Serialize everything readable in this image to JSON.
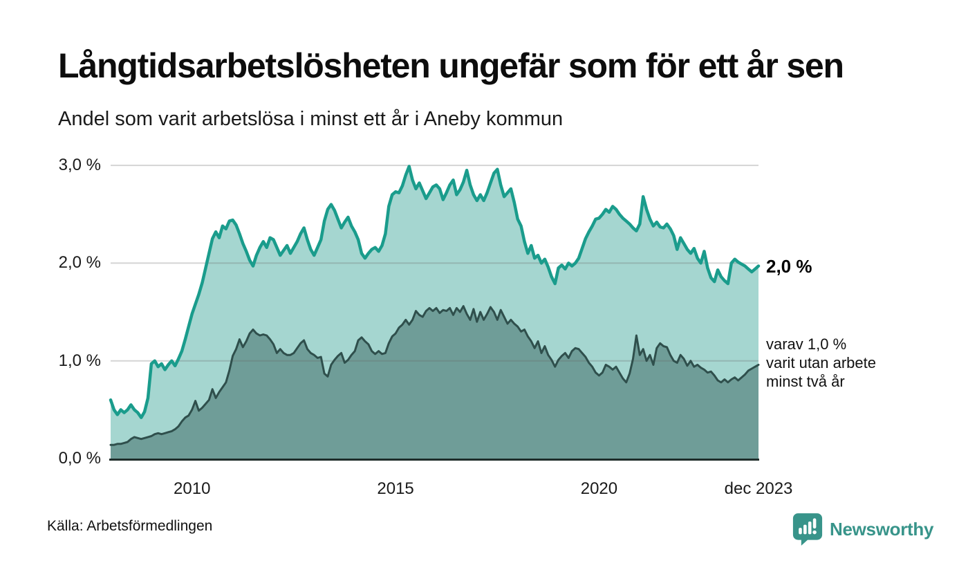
{
  "header": {
    "title": "Långtidsarbetslösheten ungefär som för ett år sen",
    "subtitle": "Andel som varit arbetslösa i minst ett år i Aneby kommun"
  },
  "annotations": {
    "end_value": "2,0 %",
    "note_lines": [
      "varav 1,0 %",
      "varit utan arbete",
      "minst två år"
    ]
  },
  "footer": {
    "source": "Källa: Arbetsförmedlingen",
    "brand": "Newsworthy"
  },
  "colors": {
    "series1_line": "#1a9c8c",
    "series1_fill": "#a5d6d0",
    "series2_line": "#2f4f4c",
    "series2_fill": "#6f9d98",
    "gridline": "rgba(100,100,100,0.28)",
    "baseline": "#1f2d2b",
    "brand_teal": "#38948a"
  },
  "chart_data": {
    "type": "area",
    "title": "Långtidsarbetslösheten ungefär som för ett år sen",
    "subtitle": "Andel som varit arbetslösa i minst ett år i Aneby kommun",
    "unit": "%",
    "frequency": "monthly",
    "x_start": "2008-01",
    "x_end": "2023-12",
    "ylim": [
      0,
      3.0
    ],
    "grid": true,
    "y_ticks": [
      {
        "label": "0,0 %",
        "value": 0
      },
      {
        "label": "1,0 %",
        "value": 1
      },
      {
        "label": "2,0 %",
        "value": 2
      },
      {
        "label": "3,0 %",
        "value": 3
      }
    ],
    "x_ticks": [
      {
        "label": "2010",
        "t": 2010
      },
      {
        "label": "2015",
        "t": 2015
      },
      {
        "label": "2020",
        "t": 2020
      },
      {
        "label": "dec 2023",
        "t": 2023.917
      }
    ],
    "series": [
      {
        "name": "Andel arbetslösa minst ett år",
        "end_label": "2,0 %",
        "line_color": "#1a9c8c",
        "fill_color": "#a5d6d0",
        "values": [
          0.6,
          0.5,
          0.45,
          0.5,
          0.47,
          0.5,
          0.55,
          0.5,
          0.47,
          0.42,
          0.48,
          0.62,
          0.97,
          1.0,
          0.94,
          0.97,
          0.91,
          0.96,
          1.0,
          0.95,
          1.02,
          1.1,
          1.22,
          1.35,
          1.48,
          1.58,
          1.68,
          1.8,
          1.95,
          2.1,
          2.25,
          2.32,
          2.26,
          2.38,
          2.35,
          2.43,
          2.44,
          2.39,
          2.3,
          2.2,
          2.12,
          2.03,
          1.97,
          2.08,
          2.16,
          2.22,
          2.16,
          2.26,
          2.24,
          2.16,
          2.08,
          2.13,
          2.18,
          2.1,
          2.16,
          2.22,
          2.3,
          2.36,
          2.24,
          2.14,
          2.08,
          2.16,
          2.24,
          2.43,
          2.55,
          2.6,
          2.54,
          2.45,
          2.36,
          2.42,
          2.47,
          2.38,
          2.32,
          2.24,
          2.1,
          2.05,
          2.1,
          2.14,
          2.16,
          2.12,
          2.18,
          2.3,
          2.58,
          2.7,
          2.73,
          2.72,
          2.79,
          2.9,
          2.99,
          2.85,
          2.76,
          2.82,
          2.74,
          2.66,
          2.72,
          2.78,
          2.8,
          2.76,
          2.65,
          2.72,
          2.8,
          2.85,
          2.7,
          2.75,
          2.83,
          2.95,
          2.8,
          2.7,
          2.64,
          2.7,
          2.64,
          2.72,
          2.82,
          2.92,
          2.96,
          2.8,
          2.68,
          2.72,
          2.76,
          2.62,
          2.45,
          2.38,
          2.22,
          2.1,
          2.18,
          2.05,
          2.08,
          2.0,
          2.04,
          1.96,
          1.86,
          1.79,
          1.95,
          1.98,
          1.94,
          2.0,
          1.97,
          2.0,
          2.05,
          2.15,
          2.25,
          2.32,
          2.38,
          2.45,
          2.46,
          2.5,
          2.55,
          2.52,
          2.58,
          2.55,
          2.5,
          2.46,
          2.43,
          2.4,
          2.36,
          2.33,
          2.4,
          2.68,
          2.55,
          2.45,
          2.38,
          2.42,
          2.37,
          2.36,
          2.4,
          2.35,
          2.28,
          2.14,
          2.26,
          2.2,
          2.14,
          2.1,
          2.15,
          2.05,
          2.0,
          2.12,
          1.95,
          1.85,
          1.81,
          1.93,
          1.86,
          1.82,
          1.79,
          2.0,
          2.04,
          2.01,
          1.99,
          1.97,
          1.94,
          1.91,
          1.94,
          1.97
        ]
      },
      {
        "name": "varav utan arbete minst två år",
        "end_label": "varav 1,0 % varit utan arbete minst två år",
        "line_color": "#2f4f4c",
        "fill_color": "#6f9d98",
        "values": [
          0.14,
          0.14,
          0.15,
          0.15,
          0.16,
          0.17,
          0.2,
          0.22,
          0.21,
          0.2,
          0.21,
          0.22,
          0.23,
          0.25,
          0.26,
          0.25,
          0.26,
          0.27,
          0.28,
          0.3,
          0.33,
          0.38,
          0.42,
          0.44,
          0.5,
          0.59,
          0.49,
          0.52,
          0.56,
          0.6,
          0.71,
          0.62,
          0.68,
          0.73,
          0.78,
          0.9,
          1.05,
          1.12,
          1.22,
          1.14,
          1.2,
          1.28,
          1.32,
          1.28,
          1.26,
          1.27,
          1.26,
          1.22,
          1.17,
          1.08,
          1.12,
          1.08,
          1.06,
          1.06,
          1.08,
          1.13,
          1.18,
          1.21,
          1.12,
          1.08,
          1.06,
          1.03,
          1.04,
          0.87,
          0.84,
          0.96,
          1.01,
          1.05,
          1.08,
          0.98,
          1.01,
          1.06,
          1.1,
          1.21,
          1.24,
          1.2,
          1.17,
          1.1,
          1.07,
          1.1,
          1.07,
          1.08,
          1.18,
          1.25,
          1.28,
          1.34,
          1.37,
          1.42,
          1.37,
          1.42,
          1.51,
          1.47,
          1.45,
          1.51,
          1.54,
          1.51,
          1.54,
          1.49,
          1.52,
          1.51,
          1.54,
          1.47,
          1.54,
          1.5,
          1.56,
          1.48,
          1.42,
          1.53,
          1.4,
          1.5,
          1.42,
          1.48,
          1.55,
          1.5,
          1.42,
          1.52,
          1.45,
          1.38,
          1.42,
          1.38,
          1.35,
          1.3,
          1.32,
          1.25,
          1.2,
          1.13,
          1.2,
          1.08,
          1.15,
          1.06,
          1.01,
          0.94,
          1.01,
          1.05,
          1.08,
          1.03,
          1.1,
          1.13,
          1.12,
          1.08,
          1.04,
          0.98,
          0.94,
          0.88,
          0.85,
          0.88,
          0.96,
          0.94,
          0.91,
          0.94,
          0.88,
          0.82,
          0.78,
          0.87,
          1.02,
          1.26,
          1.06,
          1.12,
          1.0,
          1.06,
          0.96,
          1.13,
          1.18,
          1.15,
          1.14,
          1.06,
          1.0,
          0.98,
          1.06,
          1.02,
          0.95,
          1.0,
          0.94,
          0.96,
          0.93,
          0.91,
          0.88,
          0.89,
          0.85,
          0.8,
          0.78,
          0.81,
          0.78,
          0.81,
          0.83,
          0.8,
          0.83,
          0.86,
          0.9,
          0.92,
          0.94,
          0.96
        ]
      }
    ]
  }
}
